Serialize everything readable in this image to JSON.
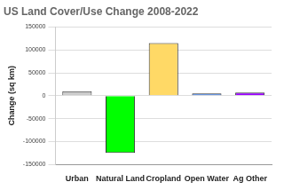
{
  "chart_data": {
    "type": "bar",
    "title": "US Land Cover/Use Change 2008-2022",
    "y_label": "Change (sq km)",
    "categories": [
      "Urban",
      "Natural Land",
      "Cropland",
      "Open Water",
      "Ag Other"
    ],
    "values": [
      10000,
      -125000,
      115000,
      5000,
      7000
    ],
    "colors": [
      "#cccccc",
      "#00ff00",
      "#ffd966",
      "#4a86e8",
      "#9900ff"
    ],
    "ylim": [
      -150000,
      150000
    ],
    "yticks": [
      -150000,
      -100000,
      -50000,
      0,
      50000,
      100000,
      150000
    ],
    "grid": true
  }
}
